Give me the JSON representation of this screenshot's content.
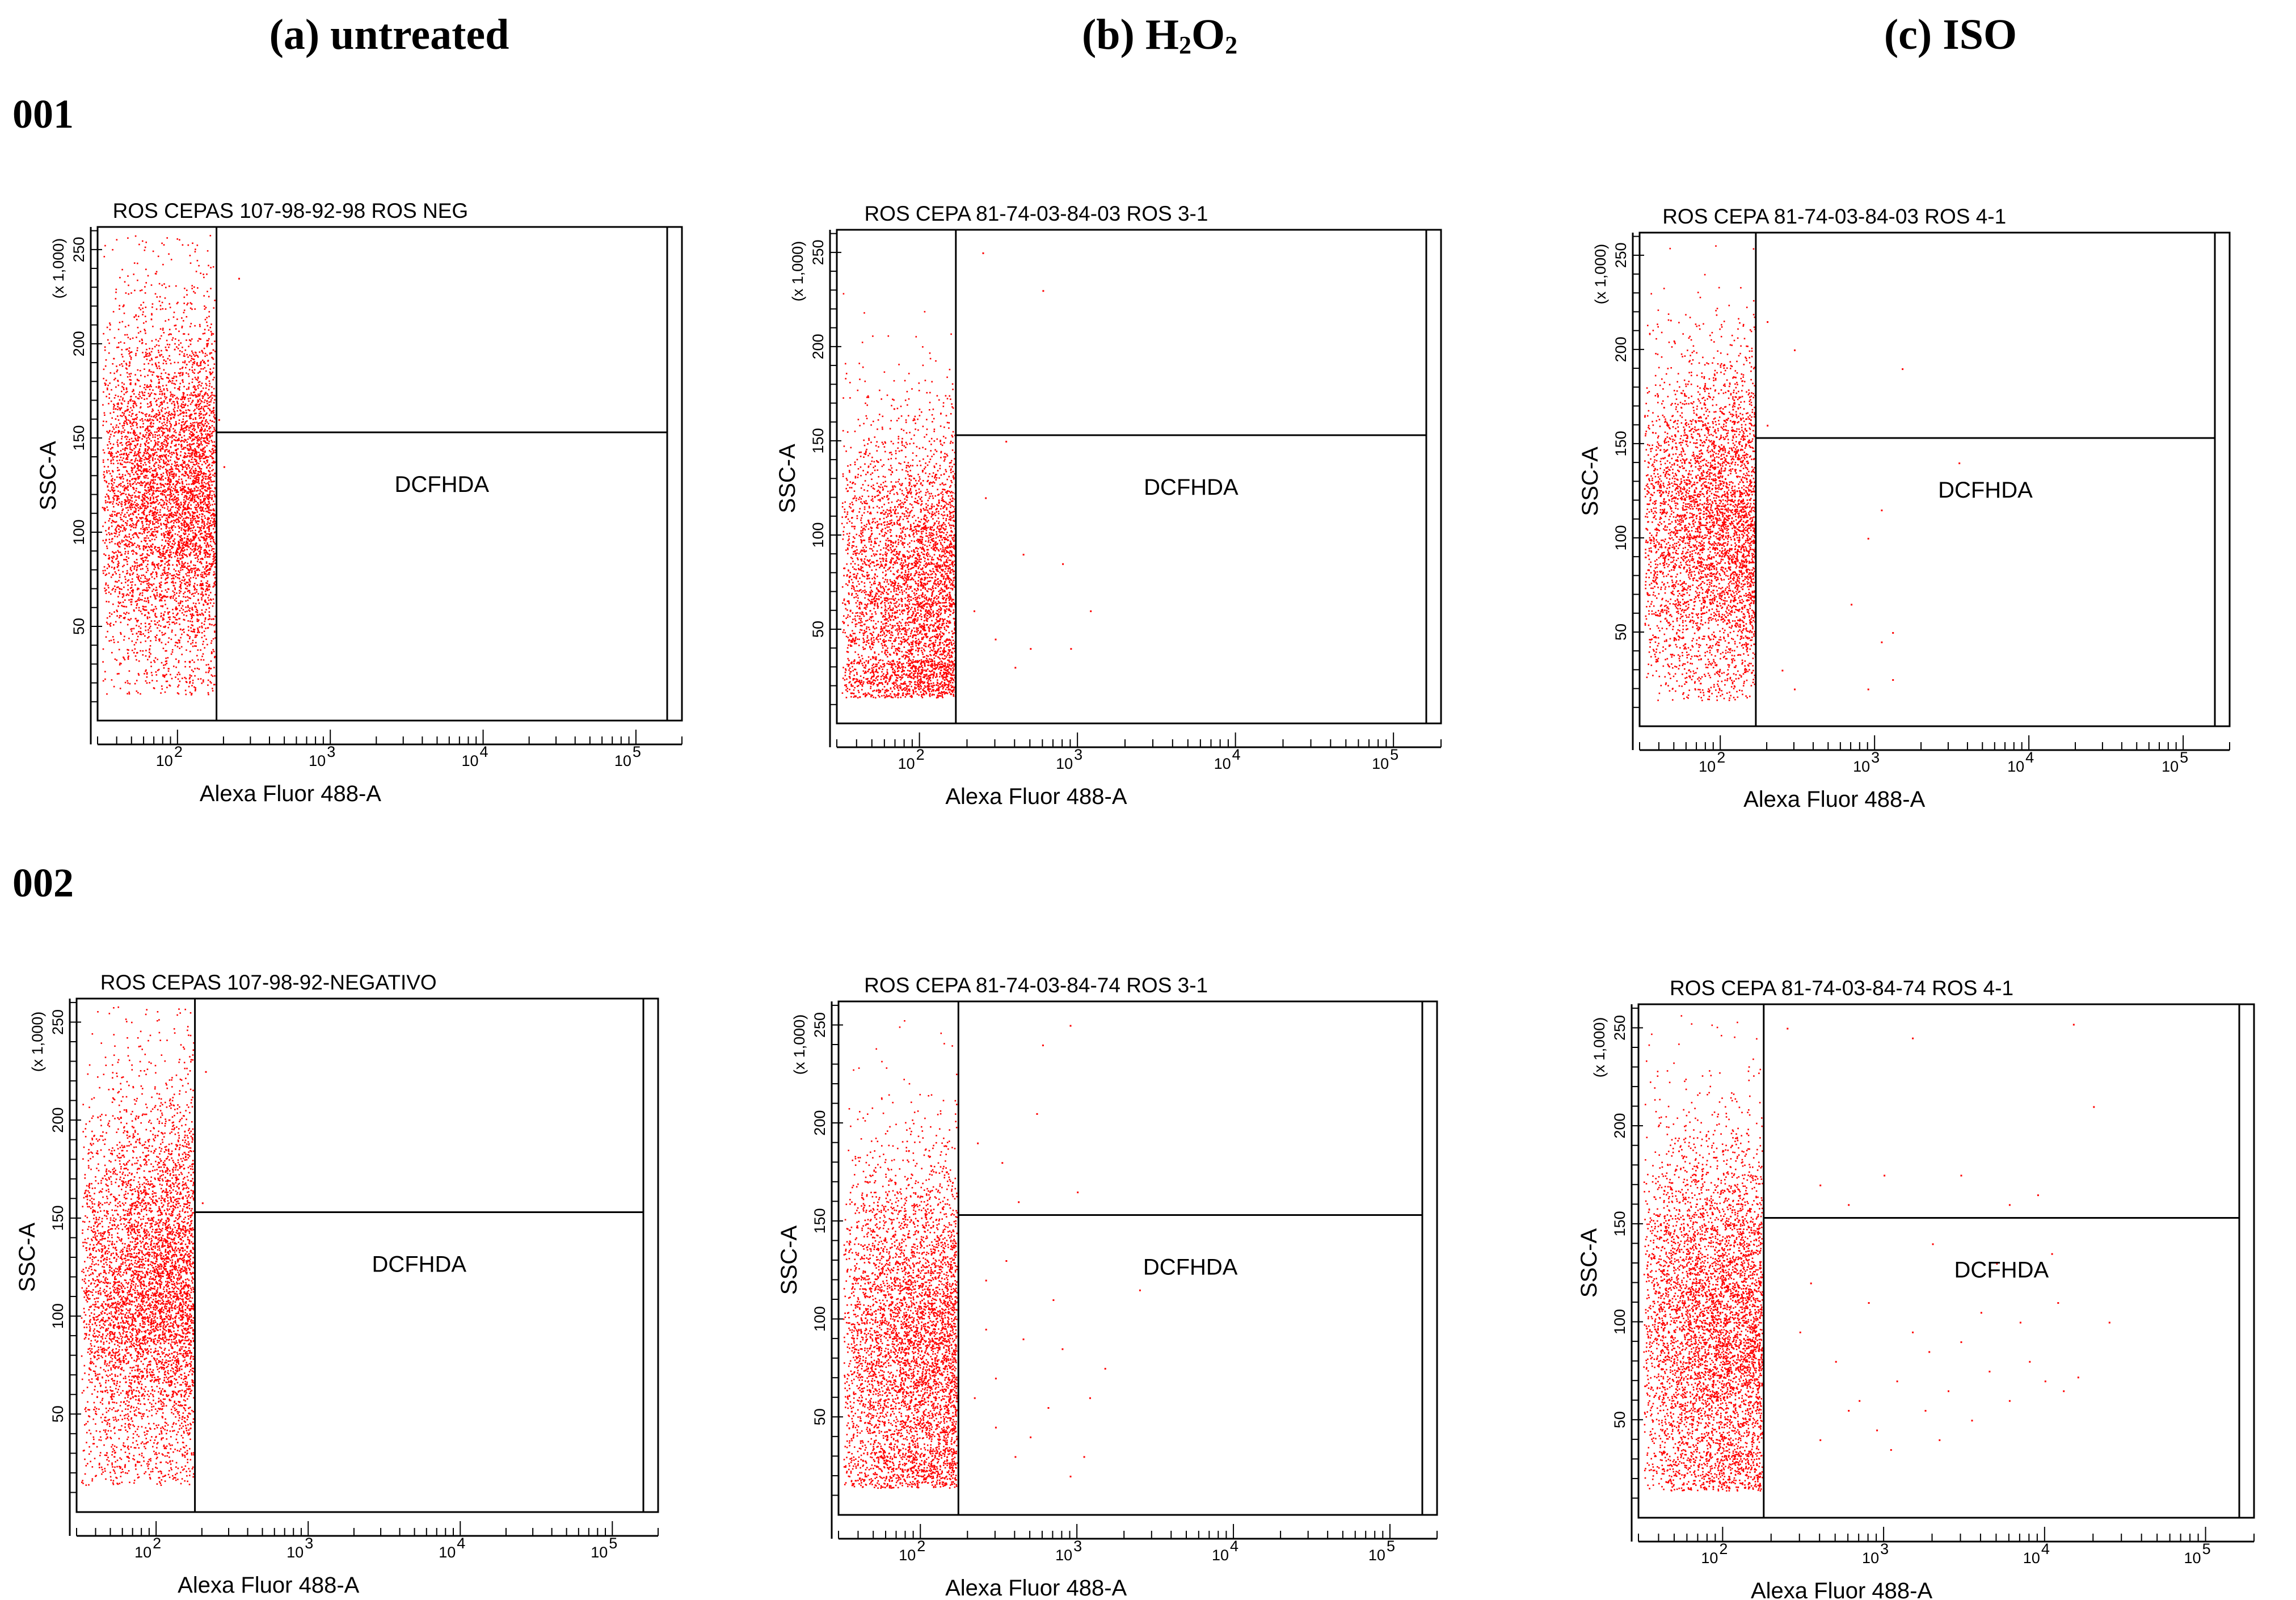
{
  "columns": [
    {
      "label": "(a) untreated"
    },
    {
      "label_main": "(b) H",
      "label_sub1": "2",
      "label_mid": "O",
      "label_sub2": "2"
    },
    {
      "label": "(c) ISO"
    }
  ],
  "rows": [
    "001",
    "002"
  ],
  "colors": {
    "dots": "#ff0000",
    "axes": "#000000"
  },
  "chart_data": [
    {
      "type": "scatter",
      "id": "p1",
      "title": "ROS CEPAS 107-98-92-98 ROS NEG",
      "xlabel": "Alexa Fluor 488-A",
      "ylabel": "SSC-A",
      "y_scale_note": "(x 1,000)",
      "x_scale": "log",
      "xlim": [
        30,
        200000
      ],
      "ylim": [
        0,
        262
      ],
      "x_ticks": [
        "10",
        "2",
        "10",
        "3",
        "10",
        "4",
        "10",
        "5"
      ],
      "y_ticks": [
        "50",
        "100",
        "150",
        "200",
        "250"
      ],
      "gate_x": 180,
      "gate_y": 153,
      "gate_label": "DCFHDA",
      "population": {
        "n": 5200,
        "x_min": 32,
        "x_max": 175,
        "y_mean": 120,
        "y_sd": 48
      },
      "outliers": [
        [
          250,
          235
        ],
        [
          185,
          160
        ],
        [
          200,
          135
        ]
      ]
    },
    {
      "type": "scatter",
      "id": "p2",
      "title": "ROS CEPA 81-74-03-84-03 ROS  3-1",
      "xlabel": "Alexa Fluor 488-A",
      "ylabel": "SSC-A",
      "y_scale_note": "(x 1,000)",
      "x_scale": "log",
      "xlim": [
        30,
        200000
      ],
      "ylim": [
        0,
        262
      ],
      "x_ticks": [
        "10",
        "2",
        "10",
        "3",
        "10",
        "4",
        "10",
        "5"
      ],
      "y_ticks": [
        "50",
        "100",
        "150",
        "200",
        "250"
      ],
      "gate_x": 170,
      "gate_y": 153,
      "gate_label": "DCFHDA",
      "population": {
        "n": 4200,
        "x_min": 32,
        "x_max": 168,
        "y_mean": 70,
        "y_sd": 45
      },
      "outliers": [
        [
          220,
          60
        ],
        [
          300,
          45
        ],
        [
          450,
          90
        ],
        [
          800,
          85
        ],
        [
          1200,
          60
        ],
        [
          500,
          40
        ],
        [
          260,
          120
        ],
        [
          350,
          150
        ],
        [
          600,
          230
        ],
        [
          250,
          250
        ],
        [
          400,
          30
        ],
        [
          900,
          40
        ]
      ]
    },
    {
      "type": "scatter",
      "id": "p3",
      "title": "ROS CEPA 81-74-03-84-03 ROS  4-1",
      "xlabel": "Alexa Fluor 488-A",
      "ylabel": "SSC-A",
      "y_scale_note": "(x 1,000)",
      "x_scale": "log",
      "xlim": [
        30,
        200000
      ],
      "ylim": [
        0,
        262
      ],
      "x_ticks": [
        "10",
        "2",
        "10",
        "3",
        "10",
        "4",
        "10",
        "5"
      ],
      "y_ticks": [
        "50",
        "100",
        "150",
        "200",
        "250"
      ],
      "gate_x": 170,
      "gate_y": 153,
      "gate_label": "DCFHDA",
      "population": {
        "n": 4300,
        "x_min": 32,
        "x_max": 168,
        "y_mean": 105,
        "y_sd": 45
      },
      "outliers": [
        [
          200,
          215
        ],
        [
          300,
          200
        ],
        [
          1500,
          190
        ],
        [
          3500,
          140
        ],
        [
          1100,
          115
        ],
        [
          900,
          100
        ],
        [
          700,
          65
        ],
        [
          1100,
          45
        ],
        [
          1300,
          50
        ],
        [
          1300,
          25
        ],
        [
          900,
          20
        ],
        [
          300,
          20
        ],
        [
          250,
          30
        ],
        [
          200,
          160
        ]
      ]
    },
    {
      "type": "scatter",
      "id": "p4",
      "title": "ROS CEPAS 107-98-92-NEGATIVO",
      "xlabel": "Alexa Fluor 488-A",
      "ylabel": "SSC-A",
      "y_scale_note": "(x 1,000)",
      "x_scale": "log",
      "xlim": [
        30,
        200000
      ],
      "ylim": [
        0,
        262
      ],
      "x_ticks": [
        "10",
        "2",
        "10",
        "3",
        "10",
        "4",
        "10",
        "5"
      ],
      "y_ticks": [
        "50",
        "100",
        "150",
        "200",
        "250"
      ],
      "gate_x": 180,
      "gate_y": 153,
      "gate_label": "DCFHDA",
      "population": {
        "n": 5200,
        "x_min": 32,
        "x_max": 175,
        "y_mean": 115,
        "y_sd": 50
      },
      "outliers": [
        [
          200,
          158
        ],
        [
          210,
          225
        ]
      ]
    },
    {
      "type": "scatter",
      "id": "p5",
      "title": "ROS CEPA 81-74-03-84-74 ROS 3-1",
      "xlabel": "Alexa Fluor 488-A",
      "ylabel": "SSC-A",
      "y_scale_note": "(x 1,000)",
      "x_scale": "log",
      "xlim": [
        30,
        200000
      ],
      "ylim": [
        0,
        262
      ],
      "x_ticks": [
        "10",
        "2",
        "10",
        "3",
        "10",
        "4",
        "10",
        "5"
      ],
      "y_ticks": [
        "50",
        "100",
        "150",
        "200",
        "250"
      ],
      "gate_x": 175,
      "gate_y": 153,
      "gate_label": "DCFHDA",
      "population": {
        "n": 4800,
        "x_min": 32,
        "x_max": 170,
        "y_mean": 85,
        "y_sd": 50
      },
      "outliers": [
        [
          220,
          60
        ],
        [
          300,
          45
        ],
        [
          450,
          90
        ],
        [
          800,
          85
        ],
        [
          1200,
          60
        ],
        [
          500,
          40
        ],
        [
          260,
          120
        ],
        [
          350,
          130
        ],
        [
          600,
          240
        ],
        [
          900,
          250
        ],
        [
          400,
          30
        ],
        [
          700,
          110
        ],
        [
          1500,
          75
        ],
        [
          2500,
          115
        ],
        [
          1000,
          165
        ],
        [
          230,
          190
        ],
        [
          550,
          205
        ],
        [
          300,
          70
        ],
        [
          650,
          55
        ],
        [
          420,
          160
        ],
        [
          900,
          20
        ],
        [
          1100,
          30
        ],
        [
          260,
          95
        ],
        [
          330,
          180
        ]
      ]
    },
    {
      "type": "scatter",
      "id": "p6",
      "title": "ROS CEPA 81-74-03-84-74 ROS 4-1",
      "xlabel": "Alexa Fluor 488-A",
      "ylabel": "SSC-A",
      "y_scale_note": "(x 1,000)",
      "x_scale": "log",
      "xlim": [
        30,
        200000
      ],
      "ylim": [
        0,
        262
      ],
      "x_ticks": [
        "10",
        "2",
        "10",
        "3",
        "10",
        "4",
        "10",
        "5"
      ],
      "y_ticks": [
        "50",
        "100",
        "150",
        "200",
        "250"
      ],
      "gate_x": 180,
      "gate_y": 153,
      "gate_label": "DCFHDA",
      "population": {
        "n": 5200,
        "x_min": 32,
        "x_max": 175,
        "y_mean": 95,
        "y_sd": 50
      },
      "outliers": [
        [
          250,
          250
        ],
        [
          1500,
          245
        ],
        [
          15000,
          252
        ],
        [
          20000,
          210
        ],
        [
          400,
          170
        ],
        [
          600,
          160
        ],
        [
          1000,
          175
        ],
        [
          3000,
          175
        ],
        [
          6000,
          160
        ],
        [
          9000,
          165
        ],
        [
          2000,
          140
        ],
        [
          5000,
          130
        ],
        [
          11000,
          135
        ],
        [
          300,
          95
        ],
        [
          500,
          80
        ],
        [
          700,
          60
        ],
        [
          900,
          45
        ],
        [
          1200,
          70
        ],
        [
          1800,
          55
        ],
        [
          2500,
          65
        ],
        [
          3500,
          50
        ],
        [
          4500,
          75
        ],
        [
          6000,
          60
        ],
        [
          8000,
          80
        ],
        [
          10000,
          70
        ],
        [
          13000,
          65
        ],
        [
          16000,
          72
        ],
        [
          25000,
          100
        ],
        [
          400,
          40
        ],
        [
          1100,
          35
        ],
        [
          2200,
          40
        ],
        [
          350,
          120
        ],
        [
          800,
          110
        ],
        [
          1500,
          95
        ],
        [
          3000,
          90
        ],
        [
          7000,
          100
        ],
        [
          12000,
          110
        ],
        [
          600,
          55
        ],
        [
          1900,
          85
        ],
        [
          4000,
          105
        ]
      ]
    }
  ]
}
